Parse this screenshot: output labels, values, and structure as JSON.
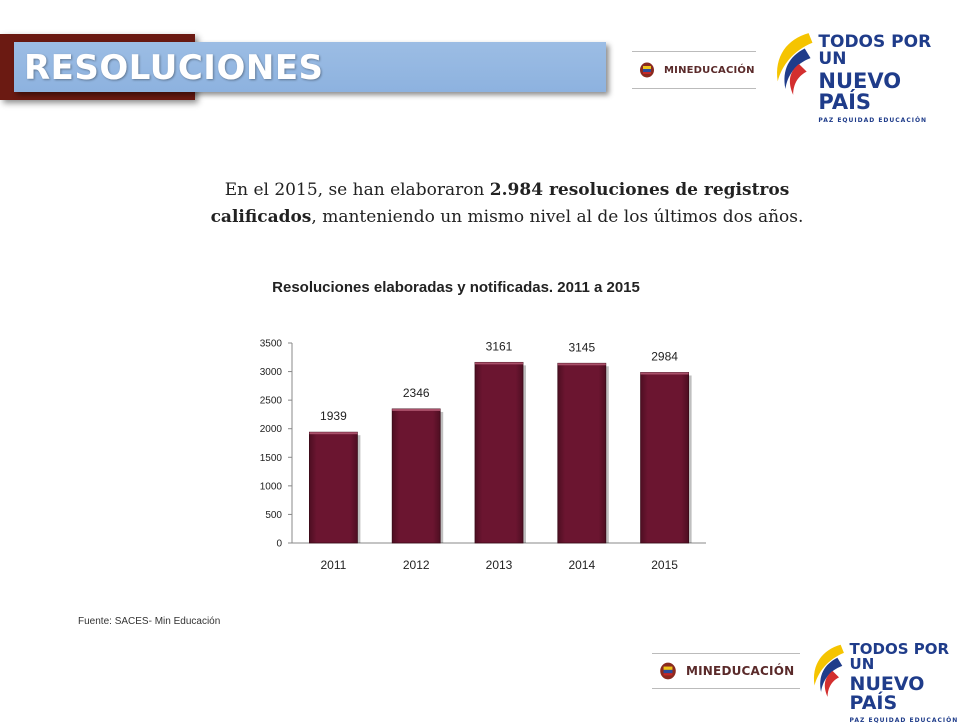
{
  "header": {
    "title": "RESOLUCIONES"
  },
  "logos": {
    "ministry": "MINEDUCACIÓN",
    "brand_line1": "TODOS POR UN",
    "brand_line2": "NUEVO PAÍS",
    "brand_line3": "PAZ  EQUIDAD  EDUCACIÓN"
  },
  "intro": {
    "part1": "En el 2015, se han elaboraron ",
    "bold": "2.984 resoluciones de registros calificados",
    "part2": ", manteniendo un mismo nivel al de los últimos dos años."
  },
  "source": "Fuente: SACES- Min Educación",
  "colors": {
    "bar": "#6b1530",
    "title_bar": "#8db2df",
    "title_shadow": "#6b1a12",
    "brand_blue": "#1f3c8a"
  },
  "chart_data": {
    "type": "bar",
    "title": "Resoluciones elaboradas y notificadas.  2011 a 2015",
    "categories": [
      "2011",
      "2012",
      "2013",
      "2014",
      "2015"
    ],
    "values": [
      1939,
      2346,
      3161,
      3145,
      2984
    ],
    "data_labels": [
      "1939",
      "2346",
      "3161",
      "3145",
      "2984"
    ],
    "ylim": [
      0,
      3500
    ],
    "yticks": [
      0,
      500,
      1000,
      1500,
      2000,
      2500,
      3000,
      3500
    ],
    "grid": false,
    "legend": "none"
  }
}
